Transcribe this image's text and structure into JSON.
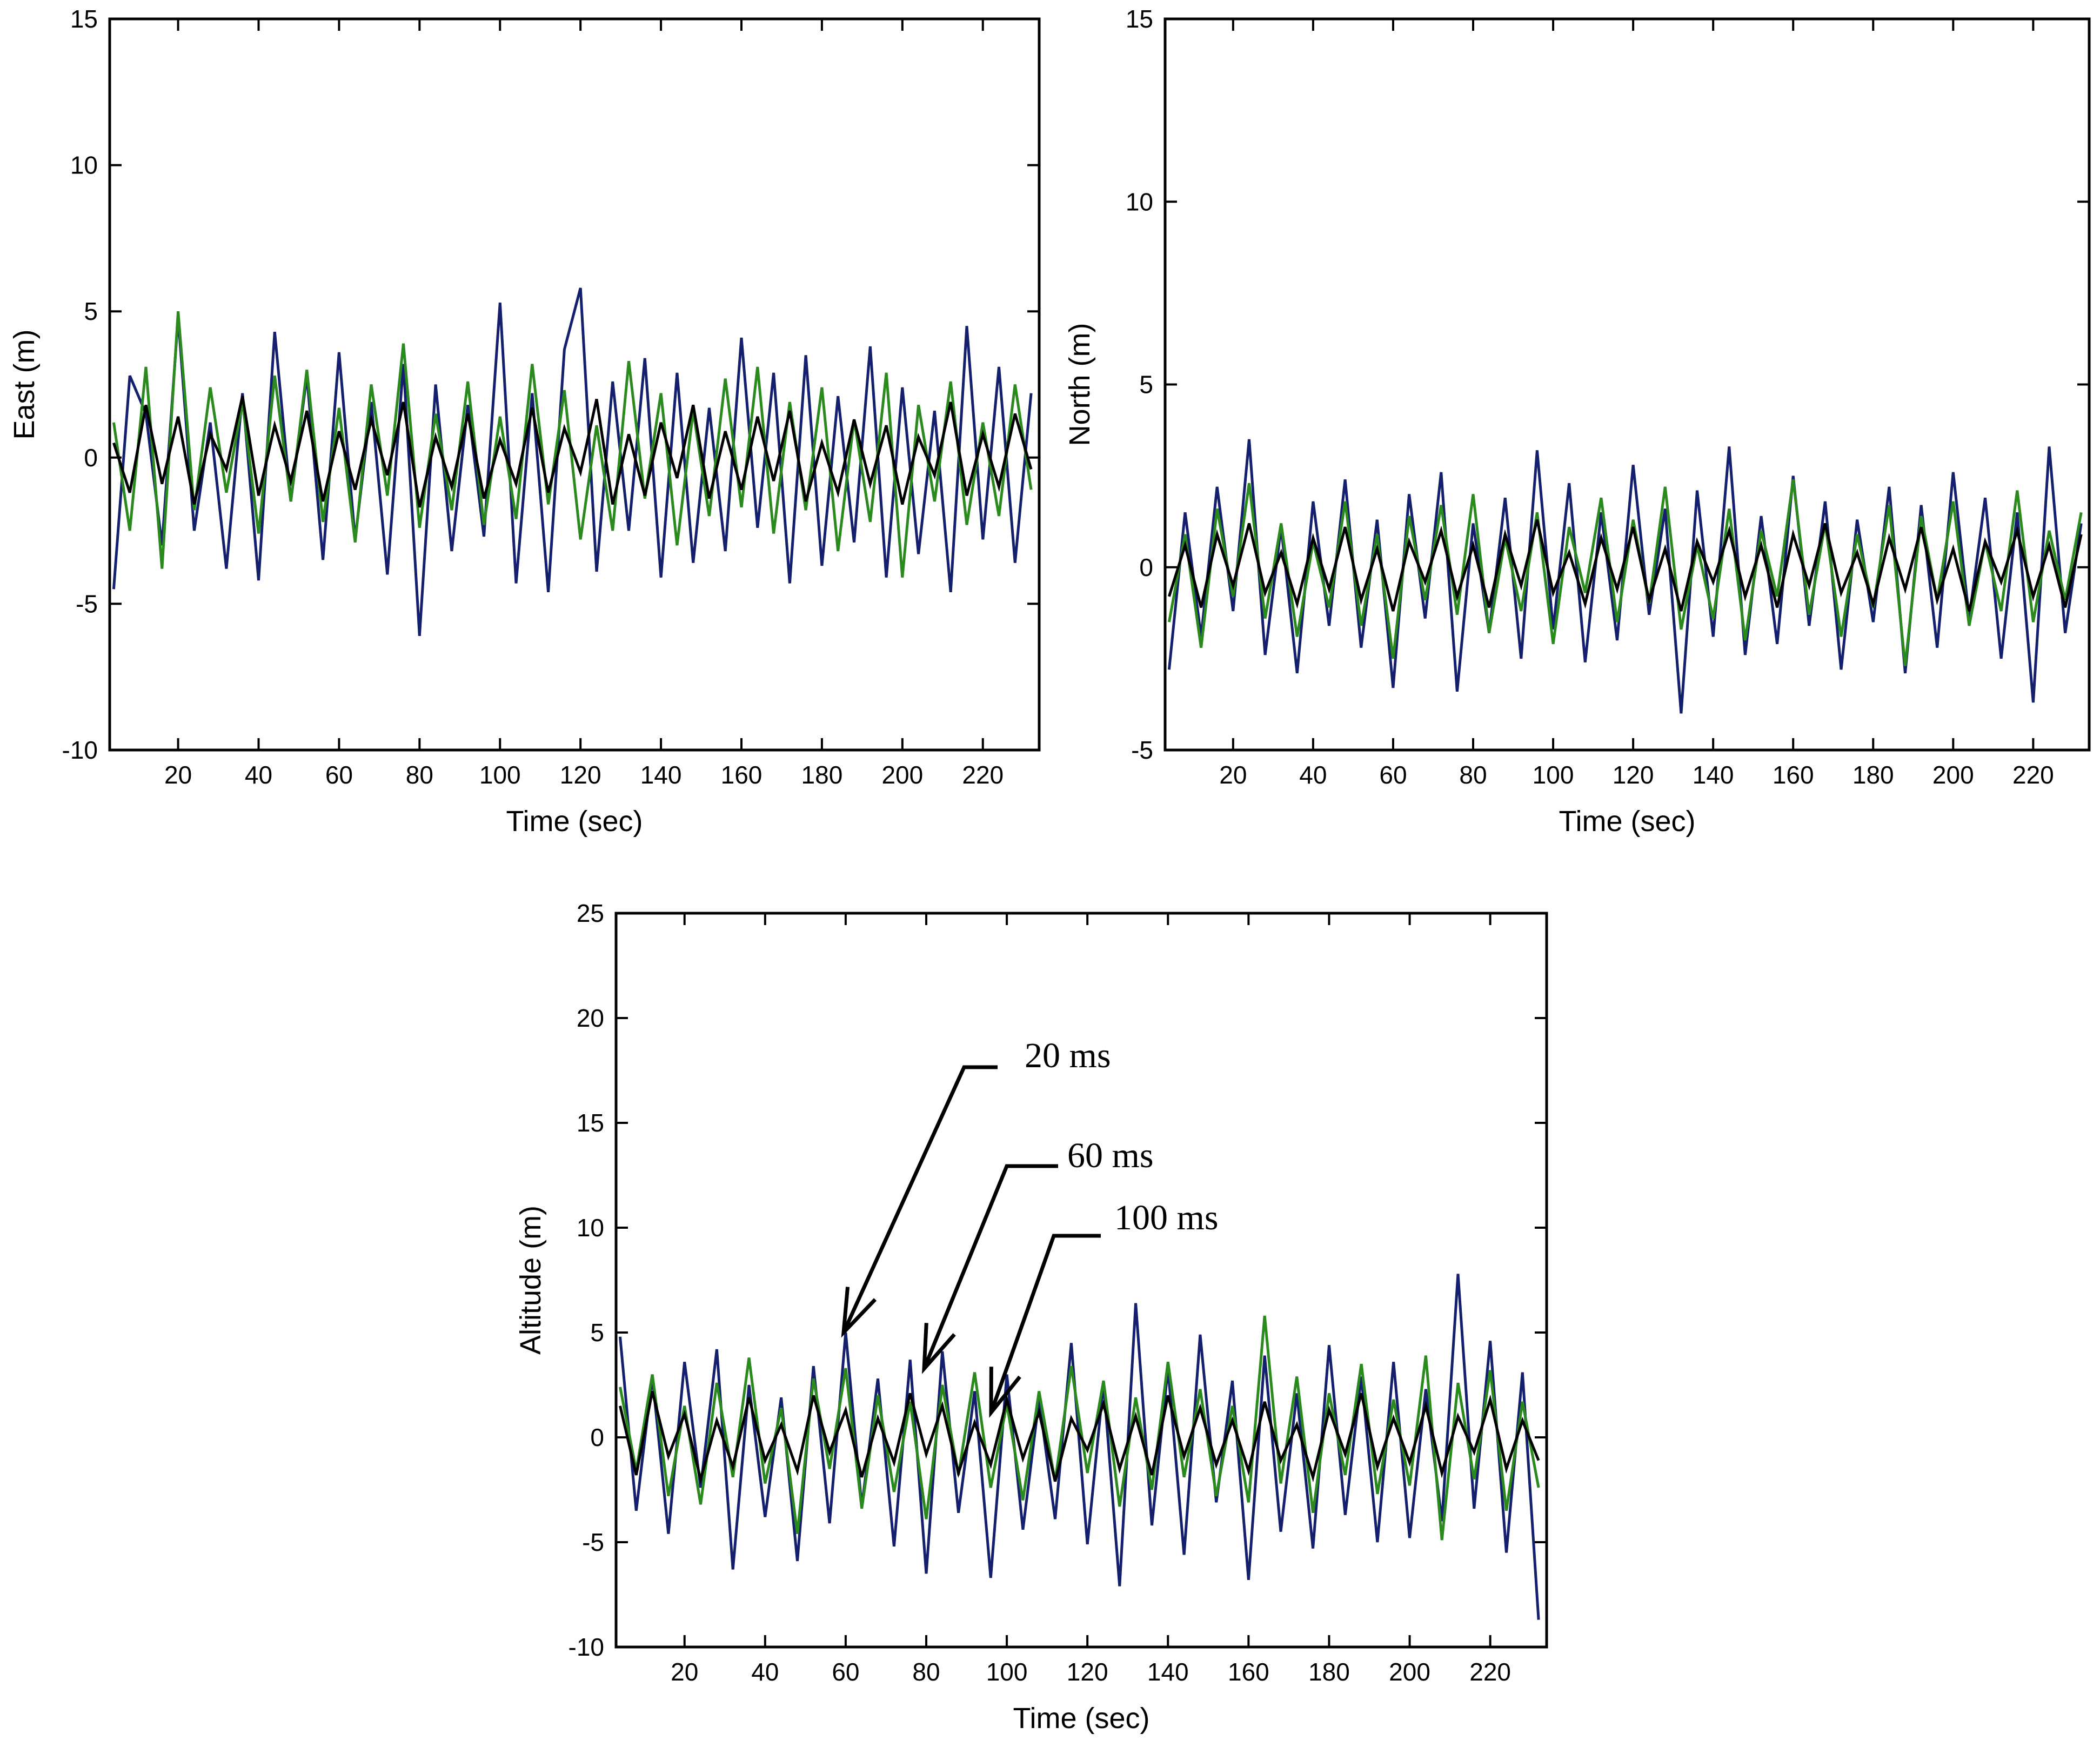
{
  "chart_data": [
    {
      "type": "line",
      "title": "",
      "xlabel": "Time (sec)",
      "ylabel": "East (m)",
      "xlim": [
        3,
        234
      ],
      "ylim": [
        -10,
        15
      ],
      "xticks": [
        20,
        40,
        60,
        80,
        100,
        120,
        140,
        160,
        180,
        200,
        220
      ],
      "yticks": [
        -10,
        -5,
        0,
        5,
        10,
        15
      ],
      "grid": false,
      "x_start": 4,
      "x_step": 4,
      "series": [
        {
          "name": "20 ms",
          "color": "#141f6e",
          "values": [
            -4.5,
            2.8,
            1.5,
            -3,
            4.8,
            -2.5,
            1.2,
            -3.8,
            2.2,
            -4.2,
            4.3,
            -1.5,
            2.8,
            -3.5,
            3.6,
            -2.8,
            1.9,
            -4,
            3.2,
            -6.1,
            2.5,
            -3.2,
            1.8,
            -2.7,
            5.3,
            -4.3,
            2.2,
            -4.6,
            3.7,
            5.8,
            -3.9,
            2.6,
            -2.5,
            3.4,
            -4.1,
            2.9,
            -3.6,
            1.7,
            -3.2,
            4.1,
            -2.4,
            2.9,
            -4.3,
            3.5,
            -3.7,
            2.1,
            -2.9,
            3.8,
            -4.1,
            2.4,
            -3.3,
            1.6,
            -4.6,
            4.5,
            -2.8,
            3.1,
            -3.6,
            2.2
          ]
        },
        {
          "name": "60 ms",
          "color": "#2a8a1e",
          "values": [
            1.2,
            -2.5,
            3.1,
            -3.8,
            5.0,
            -1.8,
            2.4,
            -1.2,
            1.9,
            -2.6,
            2.8,
            -1.5,
            3.0,
            -2.2,
            1.7,
            -2.9,
            2.5,
            -1.3,
            3.9,
            -2.4,
            1.5,
            -1.8,
            2.6,
            -2.3,
            1.4,
            -2.1,
            3.2,
            -1.6,
            2.3,
            -2.8,
            1.1,
            -2.5,
            3.3,
            -1.4,
            2.2,
            -3.0,
            1.6,
            -2.0,
            2.7,
            -1.7,
            3.1,
            -2.6,
            1.9,
            -1.8,
            2.4,
            -3.2,
            1.3,
            -2.2,
            2.9,
            -4.1,
            1.8,
            -1.5,
            2.6,
            -2.3,
            1.2,
            -2.0,
            2.5,
            -1.1
          ]
        },
        {
          "name": "100 ms",
          "color": "#000000",
          "values": [
            0.5,
            -1.2,
            1.8,
            -0.9,
            1.4,
            -1.6,
            0.8,
            -0.4,
            2.1,
            -1.3,
            1.1,
            -0.8,
            1.6,
            -1.5,
            0.9,
            -1.1,
            1.3,
            -0.6,
            1.9,
            -1.7,
            0.7,
            -1.0,
            1.5,
            -1.4,
            0.6,
            -0.9,
            1.7,
            -1.2,
            1.0,
            -0.5,
            2.0,
            -1.6,
            0.8,
            -1.3,
            1.2,
            -0.7,
            1.8,
            -1.4,
            0.9,
            -1.1,
            1.4,
            -0.8,
            1.6,
            -1.5,
            0.5,
            -1.2,
            1.3,
            -0.9,
            1.1,
            -1.6,
            0.7,
            -0.6,
            1.9,
            -1.3,
            0.8,
            -1.0,
            1.5,
            -0.4
          ]
        }
      ]
    },
    {
      "type": "line",
      "title": "",
      "xlabel": "Time (sec)",
      "ylabel": "North (m)",
      "xlim": [
        3,
        234
      ],
      "ylim": [
        -5,
        15
      ],
      "xticks": [
        20,
        40,
        60,
        80,
        100,
        120,
        140,
        160,
        180,
        200,
        220
      ],
      "yticks": [
        -5,
        0,
        5,
        10,
        15
      ],
      "grid": false,
      "x_start": 4,
      "x_step": 4,
      "series": [
        {
          "name": "20 ms",
          "color": "#141f6e",
          "values": [
            -2.8,
            1.5,
            -1.9,
            2.2,
            -1.2,
            3.5,
            -2.4,
            1.1,
            -2.9,
            1.8,
            -1.6,
            2.4,
            -2.2,
            1.3,
            -3.3,
            2.0,
            -1.4,
            2.6,
            -3.4,
            1.2,
            -1.8,
            1.9,
            -2.5,
            3.2,
            -1.7,
            2.3,
            -2.6,
            1.5,
            -2.0,
            2.8,
            -1.3,
            1.6,
            -4.0,
            2.1,
            -1.9,
            3.3,
            -2.4,
            1.4,
            -2.1,
            2.5,
            -1.6,
            1.8,
            -2.8,
            1.3,
            -1.5,
            2.2,
            -2.9,
            1.7,
            -2.2,
            2.6,
            -1.4,
            1.9,
            -2.5,
            1.5,
            -3.7,
            3.3,
            -1.8,
            1.2
          ]
        },
        {
          "name": "60 ms",
          "color": "#2a8a1e",
          "values": [
            -1.5,
            0.9,
            -2.2,
            1.6,
            -0.8,
            2.3,
            -1.4,
            1.2,
            -1.9,
            0.7,
            -1.1,
            1.8,
            -1.6,
            0.9,
            -2.5,
            1.4,
            -0.9,
            1.7,
            -1.3,
            2.0,
            -1.8,
            0.8,
            -1.2,
            1.5,
            -2.1,
            1.1,
            -0.7,
            1.9,
            -1.5,
            1.3,
            -1.0,
            2.2,
            -1.7,
            0.6,
            -1.4,
            1.6,
            -2.0,
            1.0,
            -0.8,
            2.4,
            -1.3,
            1.2,
            -1.9,
            0.9,
            -1.1,
            1.7,
            -2.7,
            1.4,
            -0.9,
            1.8,
            -1.6,
            0.7,
            -1.2,
            2.1,
            -1.5,
            1.0,
            -0.9,
            1.5
          ]
        },
        {
          "name": "100 ms",
          "color": "#000000",
          "values": [
            -0.8,
            0.6,
            -1.1,
            0.9,
            -0.5,
            1.2,
            -0.7,
            0.4,
            -1.0,
            0.8,
            -0.6,
            1.1,
            -0.9,
            0.5,
            -1.2,
            0.7,
            -0.4,
            1.0,
            -0.8,
            0.6,
            -1.1,
            0.9,
            -0.5,
            1.3,
            -0.7,
            0.4,
            -1.0,
            0.8,
            -0.6,
            1.1,
            -0.9,
            0.5,
            -1.2,
            0.7,
            -0.4,
            1.0,
            -0.8,
            0.6,
            -1.1,
            0.9,
            -0.5,
            1.2,
            -0.7,
            0.4,
            -1.0,
            0.8,
            -0.6,
            1.1,
            -0.9,
            0.5,
            -1.2,
            0.7,
            -0.4,
            1.0,
            -0.8,
            0.6,
            -1.1,
            0.9
          ]
        }
      ]
    },
    {
      "type": "line",
      "title": "",
      "xlabel": "Time (sec)",
      "ylabel": "Altitude (m)",
      "xlim": [
        3,
        234
      ],
      "ylim": [
        -10,
        25
      ],
      "xticks": [
        20,
        40,
        60,
        80,
        100,
        120,
        140,
        160,
        180,
        200,
        220
      ],
      "yticks": [
        -10,
        -5,
        0,
        5,
        10,
        15,
        20,
        25
      ],
      "grid": false,
      "x_start": 4,
      "x_step": 4,
      "series": [
        {
          "name": "20 ms",
          "color": "#141f6e",
          "values": [
            4.8,
            -3.5,
            2.9,
            -4.6,
            3.6,
            -2.4,
            4.2,
            -6.3,
            2.5,
            -3.8,
            1.9,
            -5.9,
            3.4,
            -4.1,
            5.0,
            -3.3,
            2.8,
            -5.2,
            3.7,
            -6.5,
            4.1,
            -3.6,
            2.2,
            -6.7,
            3.0,
            -4.4,
            1.8,
            -3.9,
            4.5,
            -5.1,
            2.6,
            -7.1,
            6.4,
            -4.2,
            3.3,
            -5.6,
            4.9,
            -3.1,
            2.7,
            -6.8,
            3.9,
            -4.5,
            2.1,
            -5.3,
            4.4,
            -3.7,
            2.9,
            -5.0,
            3.6,
            -4.8,
            2.3,
            -4.0,
            7.8,
            -3.4,
            4.6,
            -5.5,
            3.1,
            -8.7
          ]
        },
        {
          "name": "60 ms",
          "color": "#2a8a1e",
          "values": [
            2.4,
            -1.6,
            3.0,
            -2.8,
            1.5,
            -3.2,
            2.6,
            -1.9,
            3.8,
            -2.2,
            1.4,
            -4.6,
            2.8,
            -1.5,
            3.3,
            -3.4,
            2.0,
            -2.6,
            1.7,
            -3.9,
            2.5,
            -1.8,
            3.1,
            -2.4,
            1.6,
            -3.0,
            2.2,
            -2.1,
            3.4,
            -1.7,
            2.7,
            -3.3,
            1.9,
            -2.5,
            3.6,
            -1.9,
            2.3,
            -2.8,
            1.5,
            -3.1,
            5.8,
            -2.2,
            2.9,
            -3.6,
            2.1,
            -1.8,
            3.5,
            -2.7,
            1.8,
            -2.3,
            3.9,
            -4.9,
            2.6,
            -2.0,
            3.2,
            -3.5,
            1.7,
            -2.4
          ]
        },
        {
          "name": "100 ms",
          "color": "#000000",
          "values": [
            1.5,
            -1.8,
            2.2,
            -0.9,
            1.1,
            -2.0,
            0.8,
            -1.4,
            1.9,
            -1.1,
            0.6,
            -1.6,
            2.0,
            -0.7,
            1.3,
            -1.9,
            0.9,
            -1.2,
            2.1,
            -0.8,
            1.5,
            -1.7,
            0.7,
            -1.3,
            1.8,
            -1.0,
            1.2,
            -2.1,
            0.9,
            -0.6,
            1.6,
            -1.5,
            1.0,
            -1.8,
            2.0,
            -0.9,
            1.4,
            -1.3,
            0.8,
            -1.6,
            1.7,
            -1.1,
            0.6,
            -1.9,
            1.3,
            -0.8,
            2.1,
            -1.4,
            0.9,
            -1.2,
            1.5,
            -1.7,
            1.0,
            -0.7,
            1.8,
            -1.5,
            0.8,
            -1.1
          ]
        }
      ],
      "annotations": [
        {
          "text": "20 ms",
          "target_x": 58,
          "target_y": 5.0
        },
        {
          "text": "60 ms",
          "target_x": 78,
          "target_y": 3.3
        },
        {
          "text": "100 ms",
          "target_x": 95,
          "target_y": 1.0
        }
      ]
    }
  ]
}
